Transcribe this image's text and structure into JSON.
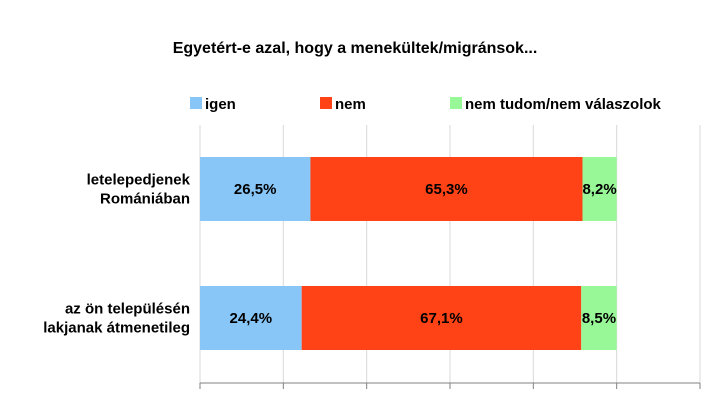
{
  "chart_data": {
    "type": "bar",
    "orientation": "horizontal",
    "stacked": true,
    "title": "Egyetért-e azal, hogy a menekültek/migránsok...",
    "legend_position": "top",
    "grid": true,
    "xlim": [
      0,
      120
    ],
    "categories": [
      [
        "letelepedjenek",
        "Romániában"
      ],
      [
        "az ön településén",
        "lakjanak átmenetileg"
      ]
    ],
    "series": [
      {
        "name": "igen",
        "color": "#87C6F7",
        "values": [
          26.5,
          24.4
        ],
        "labels": [
          "26,5%",
          "24,4%"
        ]
      },
      {
        "name": "nem",
        "color": "#FF4316",
        "values": [
          65.3,
          67.1
        ],
        "labels": [
          "65,3%",
          "67,1%"
        ]
      },
      {
        "name": "nem tudom/nem válaszolok",
        "color": "#98F898",
        "values": [
          8.2,
          8.5
        ],
        "labels": [
          "8,2%",
          "8,5%"
        ]
      }
    ]
  }
}
